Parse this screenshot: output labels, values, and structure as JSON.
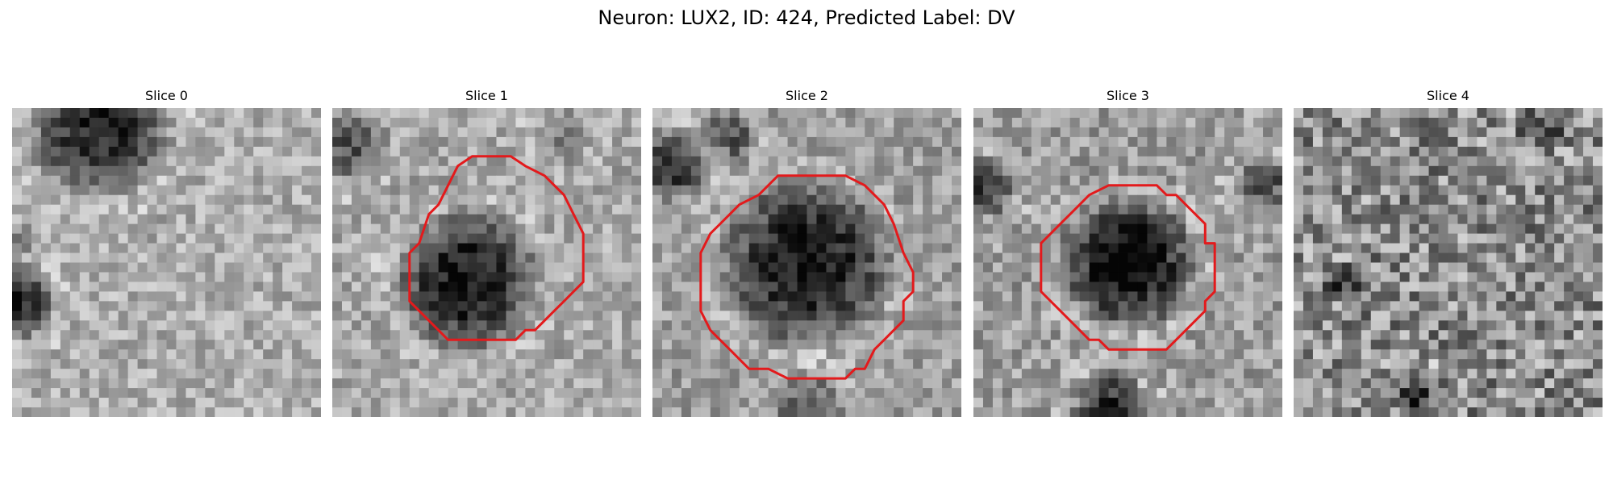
{
  "figure": {
    "title": "Neuron: LUX2, ID: 424, Predicted Label: DV"
  },
  "colors": {
    "contour": "#e31a1c",
    "background": "#ffffff"
  },
  "panels": [
    {
      "title": "Slice 0",
      "has_contour": false
    },
    {
      "title": "Slice 1",
      "has_contour": true
    },
    {
      "title": "Slice 2",
      "has_contour": true
    },
    {
      "title": "Slice 3",
      "has_contour": true
    },
    {
      "title": "Slice 4",
      "has_contour": false
    }
  ]
}
